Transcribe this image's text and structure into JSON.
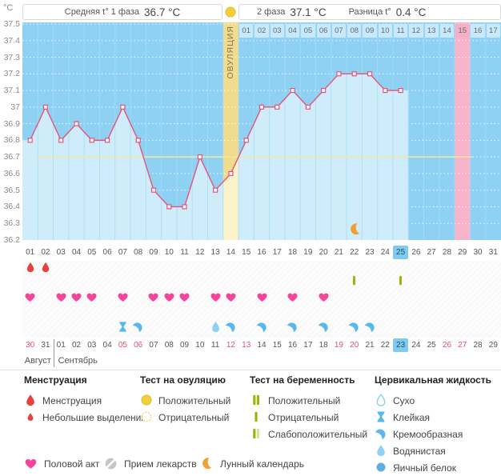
{
  "header": {
    "unit_label": "°C",
    "phase1_label": "Средняя t° 1 фаза",
    "phase1_value": "36.7 °C",
    "phase2_label": "2 фаза",
    "phase2_value": "37.1 °C",
    "diff_label": "Разница t°",
    "diff_value": "0.4 °C"
  },
  "chart_data": {
    "type": "line",
    "title": "График базальной температуры",
    "ovulation_label": "ОВУЛЯЦИЯ",
    "x": [
      1,
      2,
      3,
      4,
      5,
      6,
      7,
      8,
      9,
      10,
      11,
      12,
      13,
      14,
      15,
      16,
      17,
      18,
      19,
      20,
      21,
      22,
      23,
      24,
      25
    ],
    "values": [
      36.8,
      37.0,
      36.8,
      36.9,
      36.8,
      36.8,
      37.0,
      36.8,
      36.5,
      36.4,
      36.4,
      36.7,
      36.5,
      36.6,
      36.8,
      37.0,
      37.0,
      37.1,
      37.0,
      37.1,
      37.2,
      37.2,
      37.2,
      37.1,
      37.1
    ],
    "ylim": [
      36.2,
      37.5
    ],
    "yticks": [
      "37.5",
      "37.4",
      "37.3",
      "37.2",
      "37.1",
      "37",
      "36.9",
      "36.8",
      "36.7",
      "36.6",
      "36.5",
      "36.4",
      "36.3",
      "36.2"
    ],
    "days_total": 31,
    "coverline": 36.7,
    "ovulation_day": 14,
    "expected_period_day": 29,
    "today_cycle_day": 25,
    "moon_day": 22,
    "dpo_start_day": 15,
    "dpo_labels": [
      "01",
      "02",
      "03",
      "04",
      "05",
      "06",
      "07",
      "08",
      "09",
      "10",
      "11",
      "12",
      "13",
      "14",
      "15",
      "16",
      "17"
    ],
    "dpo_highlight": "15"
  },
  "rows": {
    "cycle_days": [
      "01",
      "02",
      "03",
      "04",
      "05",
      "06",
      "07",
      "08",
      "09",
      "10",
      "11",
      "12",
      "13",
      "14",
      "15",
      "16",
      "17",
      "18",
      "19",
      "20",
      "21",
      "22",
      "23",
      "24",
      "25",
      "26",
      "27",
      "28",
      "29",
      "30",
      "31"
    ],
    "menstruation_days": [
      1,
      2
    ],
    "pregnancy_test_negative_days": [
      22,
      25
    ],
    "intercourse_days": [
      1,
      3,
      4,
      5,
      7,
      9,
      10,
      11,
      13,
      14,
      16,
      18,
      20
    ],
    "cervical_fluid": [
      {
        "day": 7,
        "type": "cf-sticky"
      },
      {
        "day": 8,
        "type": "cf-creamy"
      },
      {
        "day": 13,
        "type": "cf-watery"
      },
      {
        "day": 14,
        "type": "cf-creamy"
      },
      {
        "day": 16,
        "type": "cf-creamy"
      },
      {
        "day": 18,
        "type": "cf-creamy"
      },
      {
        "day": 20,
        "type": "cf-creamy"
      },
      {
        "day": 22,
        "type": "cf-creamy"
      },
      {
        "day": 23,
        "type": "cf-creamy"
      }
    ],
    "dates": [
      "30",
      "31",
      "01",
      "02",
      "03",
      "04",
      "05",
      "06",
      "07",
      "08",
      "09",
      "10",
      "11",
      "12",
      "13",
      "14",
      "15",
      "16",
      "17",
      "18",
      "19",
      "20",
      "21",
      "22",
      "23",
      "24",
      "25",
      "26",
      "27",
      "28",
      "29"
    ],
    "red_date_indices": [
      0,
      6,
      7,
      13,
      14,
      20,
      21,
      27,
      28
    ],
    "today_date_index": 24,
    "months": [
      {
        "label": "Август",
        "start_day": 1,
        "end_day": 2
      },
      {
        "label": "Сентябрь",
        "start_day": 3,
        "end_day": 31
      }
    ]
  },
  "legend": {
    "groups": [
      {
        "title": "Менструация",
        "items": [
          {
            "icon": "drop-big",
            "label": "Менструация"
          },
          {
            "icon": "drop-small",
            "label": "Небольшие выделения"
          }
        ]
      },
      {
        "title": "Тест на овуляцию",
        "items": [
          {
            "icon": "sun-filled",
            "label": "Положительный"
          },
          {
            "icon": "sun-outline",
            "label": "Отрицательный"
          }
        ]
      },
      {
        "title": "Тест на беременность",
        "items": [
          {
            "icon": "preg-positive",
            "label": "Положительный"
          },
          {
            "icon": "preg-negative",
            "label": "Отрицательный"
          },
          {
            "icon": "preg-weak",
            "label": "Слабоположительный"
          }
        ]
      },
      {
        "title": "Цервикальная жидкость",
        "items": [
          {
            "icon": "cf-dry",
            "label": "Сухо"
          },
          {
            "icon": "cf-sticky",
            "label": "Клейкая"
          },
          {
            "icon": "cf-creamy",
            "label": "Кремообразная"
          },
          {
            "icon": "cf-watery",
            "label": "Водянистая"
          },
          {
            "icon": "cf-eggwhite",
            "label": "Яичный белок"
          }
        ]
      }
    ],
    "extra": [
      {
        "icon": "heart",
        "label": "Половой акт"
      },
      {
        "icon": "pill",
        "label": "Прием лекарств"
      },
      {
        "icon": "moon",
        "label": "Лунный календарь"
      }
    ]
  },
  "colors": {
    "bg_dark": "#8fd1f3",
    "bg_fill": "#cfecfb",
    "ovu_band": "#f0dc8c",
    "ovu_fill": "#faf3c9",
    "period_pink": "#f8b4c8",
    "line_pink": "#e65379",
    "coverline": "#f0e8a0",
    "heart_pink": "#f5449b",
    "drop_red": "#e8413d",
    "test_green": "#96b80e",
    "test_green_weak": "#c9de8f",
    "cervical_blue": "#58b7ec",
    "cervical_light": "#8fd0f4",
    "moon_orange": "#f0a030",
    "sun_yellow": "#f2ce3c",
    "today_blue": "#7ecbf2",
    "weekend_red": "#e8506e",
    "grid_line": "#a8dcf5"
  }
}
